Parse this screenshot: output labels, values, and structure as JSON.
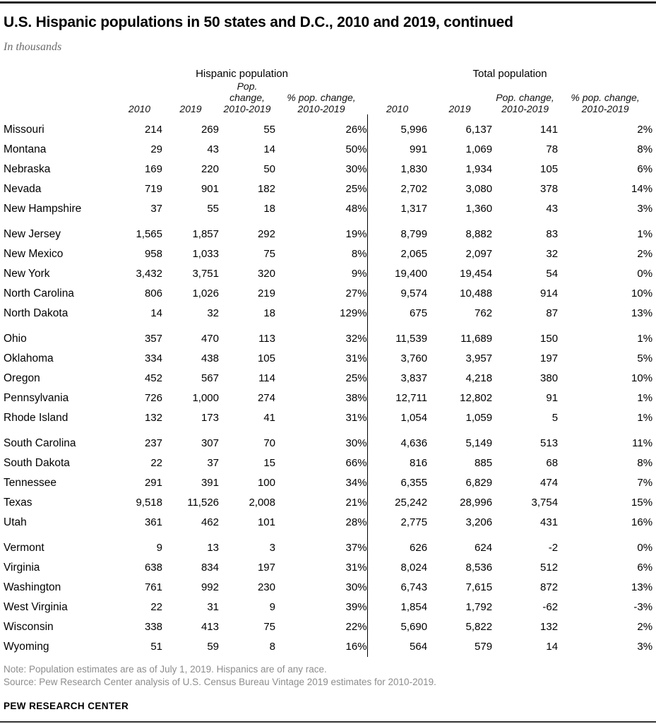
{
  "title": "U.S. Hispanic populations in 50 states and D.C., 2010 and 2019, continued",
  "subtitle": "In thousands",
  "chart_data": {
    "type": "table",
    "title": "U.S. Hispanic populations in 50 states and D.C., 2010 and 2019, continued",
    "units_note": "In thousands",
    "groups": [
      {
        "label": "Hispanic population",
        "span": 4
      },
      {
        "label": "Total population",
        "span": 4
      }
    ],
    "column_headers": [
      {
        "top": "",
        "bottom": "2010"
      },
      {
        "top": "",
        "bottom": "2019"
      },
      {
        "top": "Pop. change,",
        "bottom": "2010-2019"
      },
      {
        "top": "% pop. change,",
        "bottom": "2010-2019"
      },
      {
        "top": "",
        "bottom": "2010"
      },
      {
        "top": "",
        "bottom": "2019"
      },
      {
        "top": "Pop. change,",
        "bottom": "2010-2019"
      },
      {
        "top": "% pop. change,",
        "bottom": "2010-2019"
      }
    ],
    "group_start_indices": [
      0,
      5,
      10,
      15,
      20
    ],
    "rows": [
      [
        "Missouri",
        "214",
        "269",
        "55",
        "26%",
        "5,996",
        "6,137",
        "141",
        "2%"
      ],
      [
        "Montana",
        "29",
        "43",
        "14",
        "50%",
        "991",
        "1,069",
        "78",
        "8%"
      ],
      [
        "Nebraska",
        "169",
        "220",
        "50",
        "30%",
        "1,830",
        "1,934",
        "105",
        "6%"
      ],
      [
        "Nevada",
        "719",
        "901",
        "182",
        "25%",
        "2,702",
        "3,080",
        "378",
        "14%"
      ],
      [
        "New Hampshire",
        "37",
        "55",
        "18",
        "48%",
        "1,317",
        "1,360",
        "43",
        "3%"
      ],
      [
        "New Jersey",
        "1,565",
        "1,857",
        "292",
        "19%",
        "8,799",
        "8,882",
        "83",
        "1%"
      ],
      [
        "New Mexico",
        "958",
        "1,033",
        "75",
        "8%",
        "2,065",
        "2,097",
        "32",
        "2%"
      ],
      [
        "New York",
        "3,432",
        "3,751",
        "320",
        "9%",
        "19,400",
        "19,454",
        "54",
        "0%"
      ],
      [
        "North Carolina",
        "806",
        "1,026",
        "219",
        "27%",
        "9,574",
        "10,488",
        "914",
        "10%"
      ],
      [
        "North Dakota",
        "14",
        "32",
        "18",
        "129%",
        "675",
        "762",
        "87",
        "13%"
      ],
      [
        "Ohio",
        "357",
        "470",
        "113",
        "32%",
        "11,539",
        "11,689",
        "150",
        "1%"
      ],
      [
        "Oklahoma",
        "334",
        "438",
        "105",
        "31%",
        "3,760",
        "3,957",
        "197",
        "5%"
      ],
      [
        "Oregon",
        "452",
        "567",
        "114",
        "25%",
        "3,837",
        "4,218",
        "380",
        "10%"
      ],
      [
        "Pennsylvania",
        "726",
        "1,000",
        "274",
        "38%",
        "12,711",
        "12,802",
        "91",
        "1%"
      ],
      [
        "Rhode Island",
        "132",
        "173",
        "41",
        "31%",
        "1,054",
        "1,059",
        "5",
        "1%"
      ],
      [
        "South Carolina",
        "237",
        "307",
        "70",
        "30%",
        "4,636",
        "5,149",
        "513",
        "11%"
      ],
      [
        "South Dakota",
        "22",
        "37",
        "15",
        "66%",
        "816",
        "885",
        "68",
        "8%"
      ],
      [
        "Tennessee",
        "291",
        "391",
        "100",
        "34%",
        "6,355",
        "6,829",
        "474",
        "7%"
      ],
      [
        "Texas",
        "9,518",
        "11,526",
        "2,008",
        "21%",
        "25,242",
        "28,996",
        "3,754",
        "15%"
      ],
      [
        "Utah",
        "361",
        "462",
        "101",
        "28%",
        "2,775",
        "3,206",
        "431",
        "16%"
      ],
      [
        "Vermont",
        "9",
        "13",
        "3",
        "37%",
        "626",
        "624",
        "-2",
        "0%"
      ],
      [
        "Virginia",
        "638",
        "834",
        "197",
        "31%",
        "8,024",
        "8,536",
        "512",
        "6%"
      ],
      [
        "Washington",
        "761",
        "992",
        "230",
        "30%",
        "6,743",
        "7,615",
        "872",
        "13%"
      ],
      [
        "West Virginia",
        "22",
        "31",
        "9",
        "39%",
        "1,854",
        "1,792",
        "-62",
        "-3%"
      ],
      [
        "Wisconsin",
        "338",
        "413",
        "75",
        "22%",
        "5,690",
        "5,822",
        "132",
        "2%"
      ],
      [
        "Wyoming",
        "51",
        "59",
        "8",
        "16%",
        "564",
        "579",
        "14",
        "3%"
      ]
    ]
  },
  "footer": {
    "note": "Note: Population estimates are as of July 1, 2019. Hispanics are of any race.",
    "source": "Source: Pew Research Center analysis of U.S. Census Bureau Vintage 2019 estimates for 2010-2019.",
    "brand": "PEW RESEARCH CENTER"
  },
  "colors": {
    "text": "#000000",
    "subtitle_gray": "#6b6b6b",
    "note_gray": "#8d8d8d",
    "rule_dark": "#222222",
    "divider": "#000000"
  }
}
